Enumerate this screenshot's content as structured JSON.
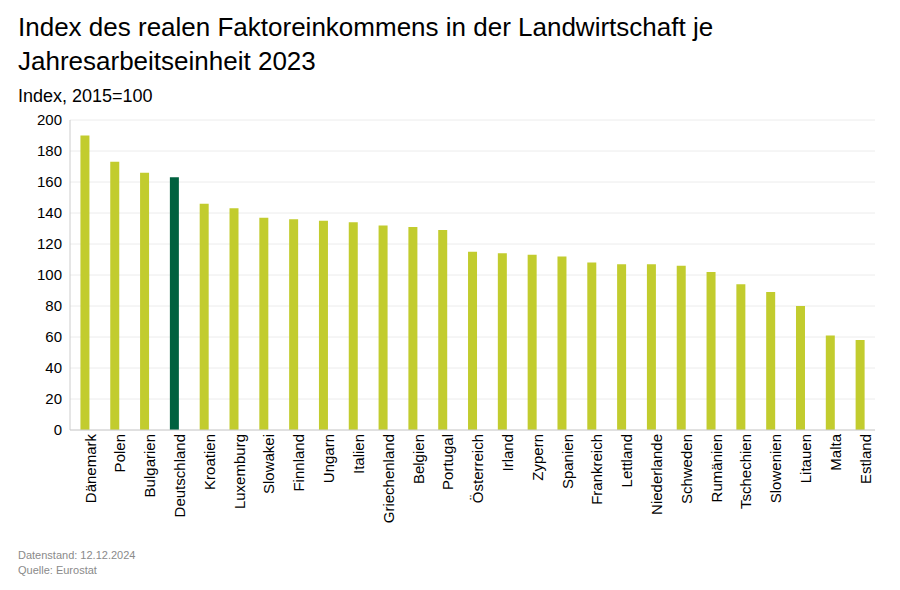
{
  "chart_data": {
    "type": "bar",
    "title": "Index des realen Faktoreinkommens in der Landwirtschaft je Jahresarbeitseinheit 2023",
    "subtitle": "Index, 2015=100",
    "categories": [
      "Dänemark",
      "Polen",
      "Bulgarien",
      "Deutschland",
      "Kroatien",
      "Luxemburg",
      "Slowakei",
      "Finnland",
      "Ungarn",
      "Italien",
      "Griechenland",
      "Belgien",
      "Portugal",
      "Österreich",
      "Irland",
      "Zypern",
      "Spanien",
      "Frankreich",
      "Lettland",
      "Niederlande",
      "Schweden",
      "Rumänien",
      "Tschechien",
      "Slowenien",
      "Litauen",
      "Malta",
      "Estland"
    ],
    "values": [
      190,
      173,
      166,
      163,
      146,
      143,
      137,
      136,
      135,
      134,
      132,
      131,
      129,
      115,
      114,
      113,
      112,
      108,
      107,
      107,
      106,
      102,
      94,
      89,
      80,
      61,
      58
    ],
    "colors": [
      "#c2cc2e",
      "#c2cc2e",
      "#c2cc2e",
      "#00613f",
      "#c2cc2e",
      "#c2cc2e",
      "#c2cc2e",
      "#c2cc2e",
      "#c2cc2e",
      "#c2cc2e",
      "#c2cc2e",
      "#c2cc2e",
      "#c2cc2e",
      "#c2cc2e",
      "#c2cc2e",
      "#c2cc2e",
      "#c2cc2e",
      "#c2cc2e",
      "#c2cc2e",
      "#c2cc2e",
      "#c2cc2e",
      "#c2cc2e",
      "#c2cc2e",
      "#c2cc2e",
      "#c2cc2e",
      "#c2cc2e",
      "#c2cc2e"
    ],
    "ylim": [
      0,
      200
    ],
    "yticks": [
      0,
      20,
      40,
      60,
      80,
      100,
      120,
      140,
      160,
      180,
      200
    ],
    "grid": true,
    "footnotes": [
      "Datenstand: 12.12.2024",
      "Quelle: Eurostat"
    ]
  }
}
